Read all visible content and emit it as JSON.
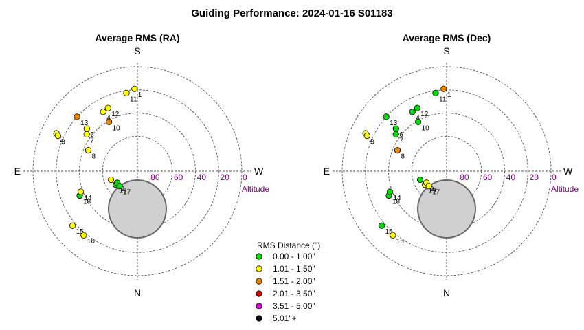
{
  "title": "Guiding Performance: 2024-01-16 S01183",
  "colors": {
    "green": "#00dd00",
    "yellow": "#ffff00",
    "orange": "#ee8800",
    "red": "#dd0000",
    "magenta": "#dd00dd",
    "black": "#000000",
    "axis_label": "#800080",
    "zenith_fill": "#d0d0d0"
  },
  "legend": {
    "title": "RMS Distance (\")",
    "items": [
      {
        "label": "0.00 - 1.00\"",
        "color": "green"
      },
      {
        "label": "1.01 - 1.50\"",
        "color": "yellow"
      },
      {
        "label": "1.51 - 2.00\"",
        "color": "orange"
      },
      {
        "label": "2.01 - 3.50\"",
        "color": "red"
      },
      {
        "label": "3.51 - 5.00\"",
        "color": "magenta"
      },
      {
        "label": "5.01\"+",
        "color": "black"
      }
    ]
  },
  "chart_data": [
    {
      "type": "scatter",
      "projection": "polar altitude-azimuth",
      "title": "Average RMS (RA)",
      "compass": {
        "top": "S",
        "bottom": "N",
        "left": "E",
        "right": "W"
      },
      "radial_ticks": [
        "80",
        "60",
        "40",
        "20",
        "0"
      ],
      "radial_axis_label": "Altitude",
      "altitude_range": [
        0,
        90
      ],
      "points": [
        {
          "label": "1",
          "azimuth": 178,
          "altitude": 19,
          "rms_class": "yellow"
        },
        {
          "label": "11",
          "azimuth": 172,
          "altitude": 22,
          "rms_class": "yellow"
        },
        {
          "label": "12",
          "azimuth": 155,
          "altitude": 30,
          "rms_class": "yellow"
        },
        {
          "label": "4",
          "azimuth": 150,
          "altitude": 31,
          "rms_class": "yellow"
        },
        {
          "label": "10",
          "azimuth": 150,
          "altitude": 41,
          "rms_class": "orange"
        },
        {
          "label": "13",
          "azimuth": 132,
          "altitude": 20,
          "rms_class": "orange"
        },
        {
          "label": "6",
          "azimuth": 130,
          "altitude": 33,
          "rms_class": "yellow"
        },
        {
          "label": "7",
          "azimuth": 126,
          "altitude": 36,
          "rms_class": "yellow"
        },
        {
          "label": "2",
          "azimuth": 115,
          "altitude": 13,
          "rms_class": "yellow"
        },
        {
          "label": "3",
          "azimuth": 114,
          "altitude": 15,
          "rms_class": "yellow"
        },
        {
          "label": "8",
          "azimuth": 113,
          "altitude": 44,
          "rms_class": "yellow"
        },
        {
          "label": "5",
          "azimuth": 72,
          "altitude": 66,
          "rms_class": "yellow"
        },
        {
          "label": "19",
          "azimuth": 58,
          "altitude": 68,
          "rms_class": "green"
        },
        {
          "label": "9",
          "azimuth": 60,
          "altitude": 70,
          "rms_class": "green"
        },
        {
          "label": "17",
          "azimuth": 50,
          "altitude": 70,
          "rms_class": "green"
        },
        {
          "label": "18",
          "azimuth": 67,
          "altitude": 36,
          "rms_class": "green"
        },
        {
          "label": "14",
          "azimuth": 70,
          "altitude": 38,
          "rms_class": "yellow"
        },
        {
          "label": "15",
          "azimuth": 50,
          "altitude": 17,
          "rms_class": "yellow"
        },
        {
          "label": "16",
          "azimuth": 40,
          "altitude": 18,
          "rms_class": "yellow"
        }
      ]
    },
    {
      "type": "scatter",
      "projection": "polar altitude-azimuth",
      "title": "Average RMS (Dec)",
      "compass": {
        "top": "S",
        "bottom": "N",
        "left": "E",
        "right": "W"
      },
      "radial_ticks": [
        "80",
        "60",
        "40",
        "20",
        "0"
      ],
      "radial_axis_label": "Altitude",
      "altitude_range": [
        0,
        90
      ],
      "points": [
        {
          "label": "1",
          "azimuth": 178,
          "altitude": 19,
          "rms_class": "orange"
        },
        {
          "label": "11",
          "azimuth": 172,
          "altitude": 22,
          "rms_class": "green"
        },
        {
          "label": "12",
          "azimuth": 155,
          "altitude": 30,
          "rms_class": "green"
        },
        {
          "label": "4",
          "azimuth": 150,
          "altitude": 31,
          "rms_class": "green"
        },
        {
          "label": "10",
          "azimuth": 150,
          "altitude": 41,
          "rms_class": "green"
        },
        {
          "label": "13",
          "azimuth": 132,
          "altitude": 20,
          "rms_class": "green"
        },
        {
          "label": "6",
          "azimuth": 130,
          "altitude": 33,
          "rms_class": "green"
        },
        {
          "label": "7",
          "azimuth": 126,
          "altitude": 36,
          "rms_class": "green"
        },
        {
          "label": "2",
          "azimuth": 115,
          "altitude": 13,
          "rms_class": "yellow"
        },
        {
          "label": "3",
          "azimuth": 114,
          "altitude": 15,
          "rms_class": "yellow"
        },
        {
          "label": "8",
          "azimuth": 113,
          "altitude": 44,
          "rms_class": "orange"
        },
        {
          "label": "5",
          "azimuth": 72,
          "altitude": 66,
          "rms_class": "green"
        },
        {
          "label": "19",
          "azimuth": 58,
          "altitude": 68,
          "rms_class": "yellow"
        },
        {
          "label": "9",
          "azimuth": 60,
          "altitude": 70,
          "rms_class": "yellow"
        },
        {
          "label": "17",
          "azimuth": 50,
          "altitude": 70,
          "rms_class": "yellow"
        },
        {
          "label": "18",
          "azimuth": 67,
          "altitude": 36,
          "rms_class": "green"
        },
        {
          "label": "14",
          "azimuth": 70,
          "altitude": 38,
          "rms_class": "green"
        },
        {
          "label": "15",
          "azimuth": 50,
          "altitude": 17,
          "rms_class": "green"
        },
        {
          "label": "16",
          "azimuth": 40,
          "altitude": 18,
          "rms_class": "yellow"
        }
      ]
    }
  ]
}
